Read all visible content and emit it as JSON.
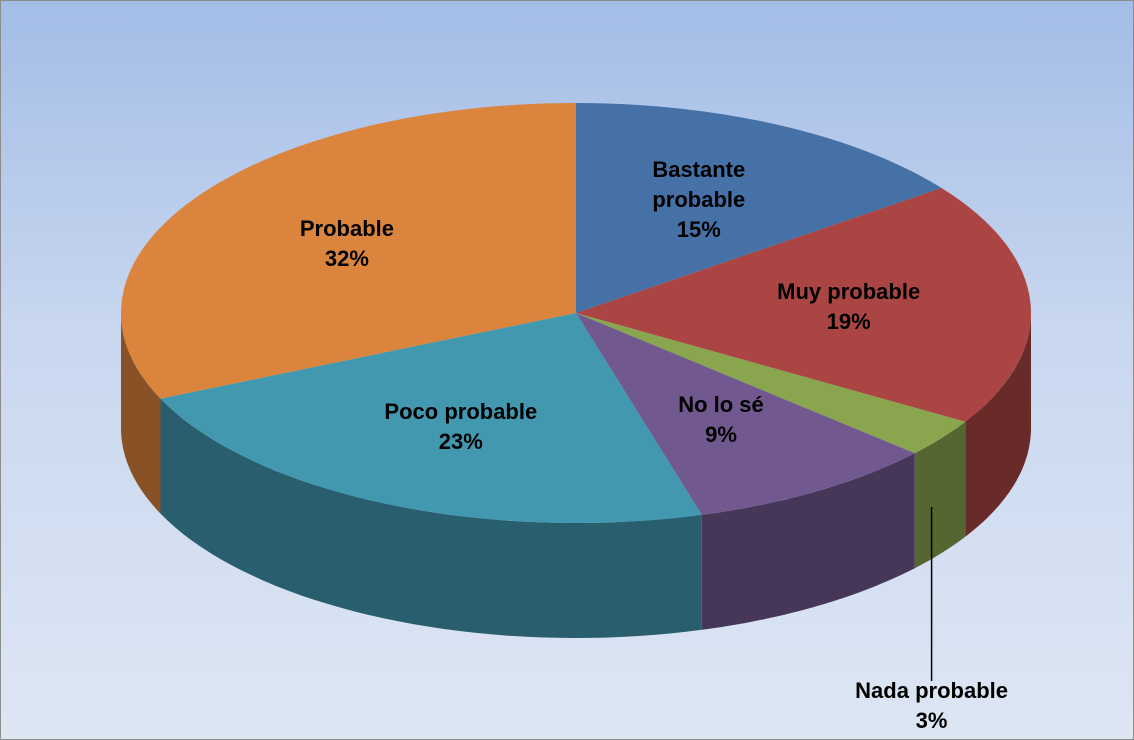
{
  "chart_data": {
    "type": "pie",
    "categories": [
      "Bastante probable",
      "Muy probable",
      "Nada probable",
      "No lo sé",
      "Poco probable",
      "Probable"
    ],
    "values": [
      15,
      19,
      3,
      9,
      23,
      32
    ],
    "value_labels": [
      "15%",
      "19%",
      "3%",
      "9%",
      "23%",
      "32%"
    ],
    "colors": [
      "#4571a7",
      "#aa4543",
      "#89a54e",
      "#71588f",
      "#4198af",
      "#db843d"
    ]
  }
}
